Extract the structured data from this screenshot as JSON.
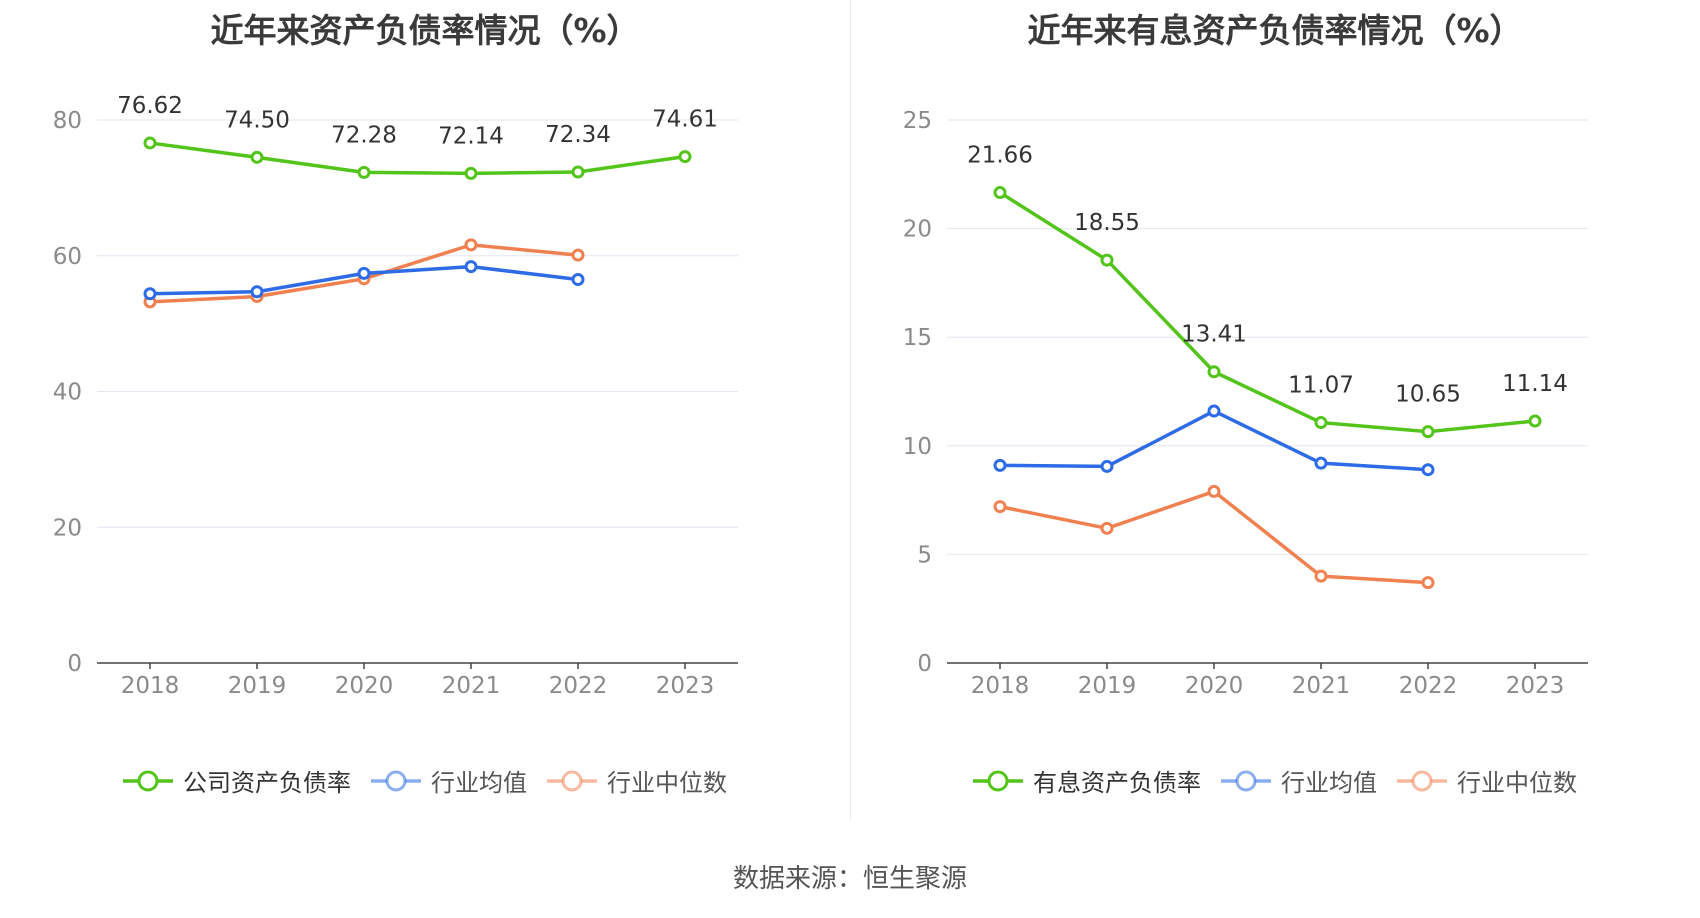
{
  "source": "数据来源：恒生聚源",
  "chart_data": [
    {
      "type": "line",
      "title": "近年来资产负债率情况（%）",
      "x": [
        "2018",
        "2019",
        "2020",
        "2021",
        "2022",
        "2023"
      ],
      "yticks": [
        0,
        20,
        40,
        60,
        80
      ],
      "ylim": [
        0,
        80
      ],
      "grid": true,
      "legend_position": "bottom",
      "series": [
        {
          "name": "公司资产负债率",
          "color": "#52c41a",
          "values": [
            76.62,
            74.5,
            72.28,
            72.14,
            72.34,
            74.61
          ],
          "labels": [
            "76.62",
            "74.50",
            "72.28",
            "72.14",
            "72.34",
            "74.61"
          ]
        },
        {
          "name": "行业均值",
          "color": "#2e6be6",
          "values": [
            54.4,
            54.7,
            57.4,
            58.4,
            56.5,
            null
          ]
        },
        {
          "name": "行业中位数",
          "color": "#f08050",
          "values": [
            53.2,
            54.0,
            56.6,
            61.6,
            60.1,
            null
          ]
        }
      ]
    },
    {
      "type": "line",
      "title": "近年来有息资产负债率情况（%）",
      "x": [
        "2018",
        "2019",
        "2020",
        "2021",
        "2022",
        "2023"
      ],
      "yticks": [
        0,
        5,
        10,
        15,
        20,
        25
      ],
      "ylim": [
        0,
        25
      ],
      "grid": true,
      "legend_position": "bottom",
      "series": [
        {
          "name": "有息资产负债率",
          "color": "#52c41a",
          "values": [
            21.66,
            18.55,
            13.41,
            11.07,
            10.65,
            11.14
          ],
          "labels": [
            "21.66",
            "18.55",
            "13.41",
            "11.07",
            "10.65",
            "11.14"
          ]
        },
        {
          "name": "行业均值",
          "color": "#2e6be6",
          "values": [
            9.1,
            9.05,
            11.6,
            9.2,
            8.9,
            null
          ]
        },
        {
          "name": "行业中位数",
          "color": "#f08050",
          "values": [
            7.2,
            6.2,
            7.9,
            4.0,
            3.7,
            null
          ]
        }
      ]
    }
  ]
}
